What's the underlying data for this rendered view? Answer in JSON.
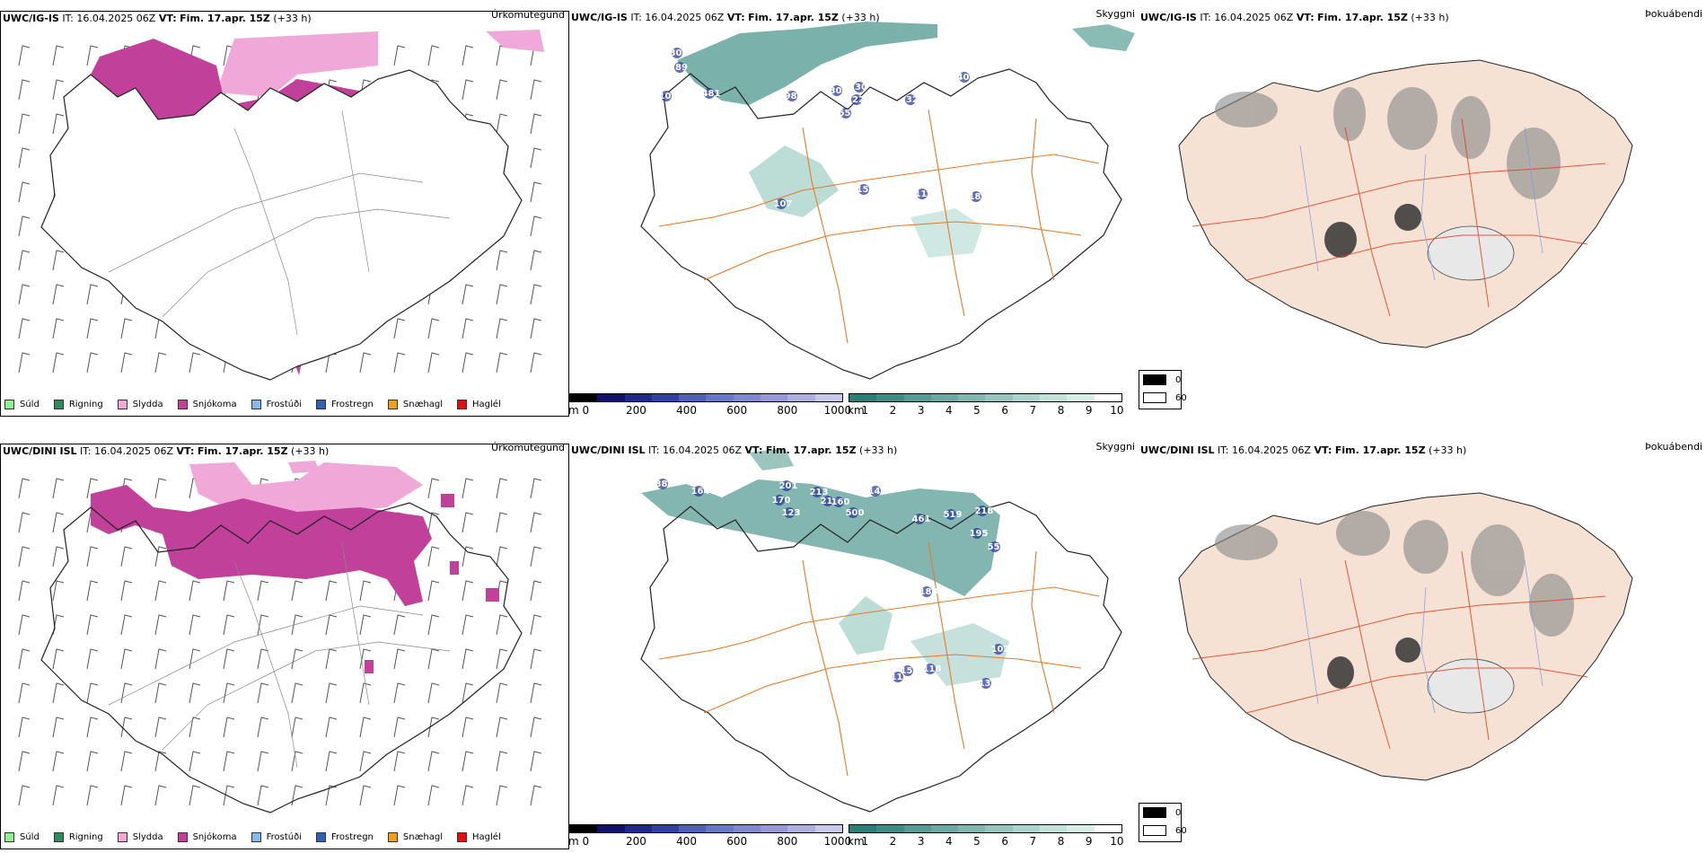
{
  "rows": [
    {
      "model": "UWC/IG-IS",
      "it_label": "IT:",
      "it_value": "16.04.2025 06Z",
      "vt_label": "VT:",
      "vt_value": "Fim. 17.apr. 15Z",
      "lead": "(+33 h)",
      "panels": {
        "precip_type": {
          "title": "Úrkomutegund"
        },
        "visibility": {
          "title": "Skyggni",
          "labels": [
            "302",
            "89",
            "481",
            "104",
            "986",
            "300",
            "22",
            "552",
            "30",
            "32",
            "402",
            "107",
            "153",
            "116",
            "186"
          ]
        },
        "cloud": {
          "title": "Þokuábendi"
        }
      }
    },
    {
      "model": "UWC/DINI ISL",
      "it_label": "IT:",
      "it_value": "16.04.2025 06Z",
      "vt_label": "VT:",
      "vt_value": "Fim. 17.apr. 15Z",
      "lead": "(+33 h)",
      "panels": {
        "precip_type": {
          "title": "Úrkomutegund"
        },
        "visibility": {
          "title": "Skyggni",
          "labels": [
            "387",
            "164",
            "201",
            "170",
            "123",
            "213",
            "214",
            "500",
            "160",
            "146",
            "461",
            "519",
            "218",
            "195",
            "551",
            "188",
            "116",
            "102",
            "151",
            "118",
            "133"
          ]
        },
        "cloud": {
          "title": "Þokuábendi"
        }
      }
    }
  ],
  "precip_legend": [
    {
      "label": "Súld",
      "color": "#90ee90"
    },
    {
      "label": "Rigning",
      "color": "#2e8b57"
    },
    {
      "label": "Slydda",
      "color": "#f0a8d8"
    },
    {
      "label": "Snjókoma",
      "color": "#c0409a"
    },
    {
      "label": "Frostúði",
      "color": "#87b8e8"
    },
    {
      "label": "Frostregn",
      "color": "#3060b0"
    },
    {
      "label": "Snæhagl",
      "color": "#f0a020"
    },
    {
      "label": "Haglél",
      "color": "#e01010"
    }
  ],
  "elevation_scale": {
    "unit": "m",
    "ticks": [
      "0",
      "200",
      "400",
      "600",
      "800",
      "1000"
    ],
    "colors": [
      "#000000",
      "#101070",
      "#202890",
      "#3040a8",
      "#5060b8",
      "#6878c8",
      "#8088d0",
      "#9898d8",
      "#b0b0e0",
      "#c8c8e8"
    ]
  },
  "visibility_scale": {
    "unit": "km",
    "ticks": [
      "1",
      "2",
      "3",
      "4",
      "5",
      "6",
      "7",
      "8",
      "9",
      "10"
    ],
    "colors": [
      "#2a8078",
      "#3e8e86",
      "#549c94",
      "#6aaaa2",
      "#80b8b0",
      "#96c6be",
      "#acd4cc",
      "#c2e2da",
      "#d8efe8",
      "#ffffff"
    ]
  },
  "cloud_legend": [
    {
      "label": "0",
      "color": "#000000"
    },
    {
      "label": "60",
      "color": "#ffffff"
    }
  ],
  "colors": {
    "snow": "#c0409a",
    "sleet": "#f0a8d8",
    "road": "#e87a2a",
    "teal": "#2a8078",
    "terrain": "#f5e2d4",
    "river": "#7a9ae8"
  }
}
